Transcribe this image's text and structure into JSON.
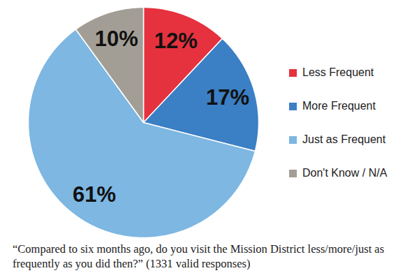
{
  "chart_data": {
    "type": "pie",
    "caption": "“Compared to six months ago, do you visit the Mission District less/more/just as frequently as you did then?” (1331 valid responses)",
    "categories": [
      "Less Frequent",
      "More Frequent",
      "Just as Frequent",
      "Don't Know / N/A"
    ],
    "values": [
      12,
      17,
      61,
      10
    ],
    "value_labels": [
      "12%",
      "17%",
      "61%",
      "10%"
    ],
    "colors": [
      "#e5323e",
      "#3b7fc4",
      "#7db7e2",
      "#a39e95"
    ],
    "data_labels": true,
    "legend": "right"
  }
}
